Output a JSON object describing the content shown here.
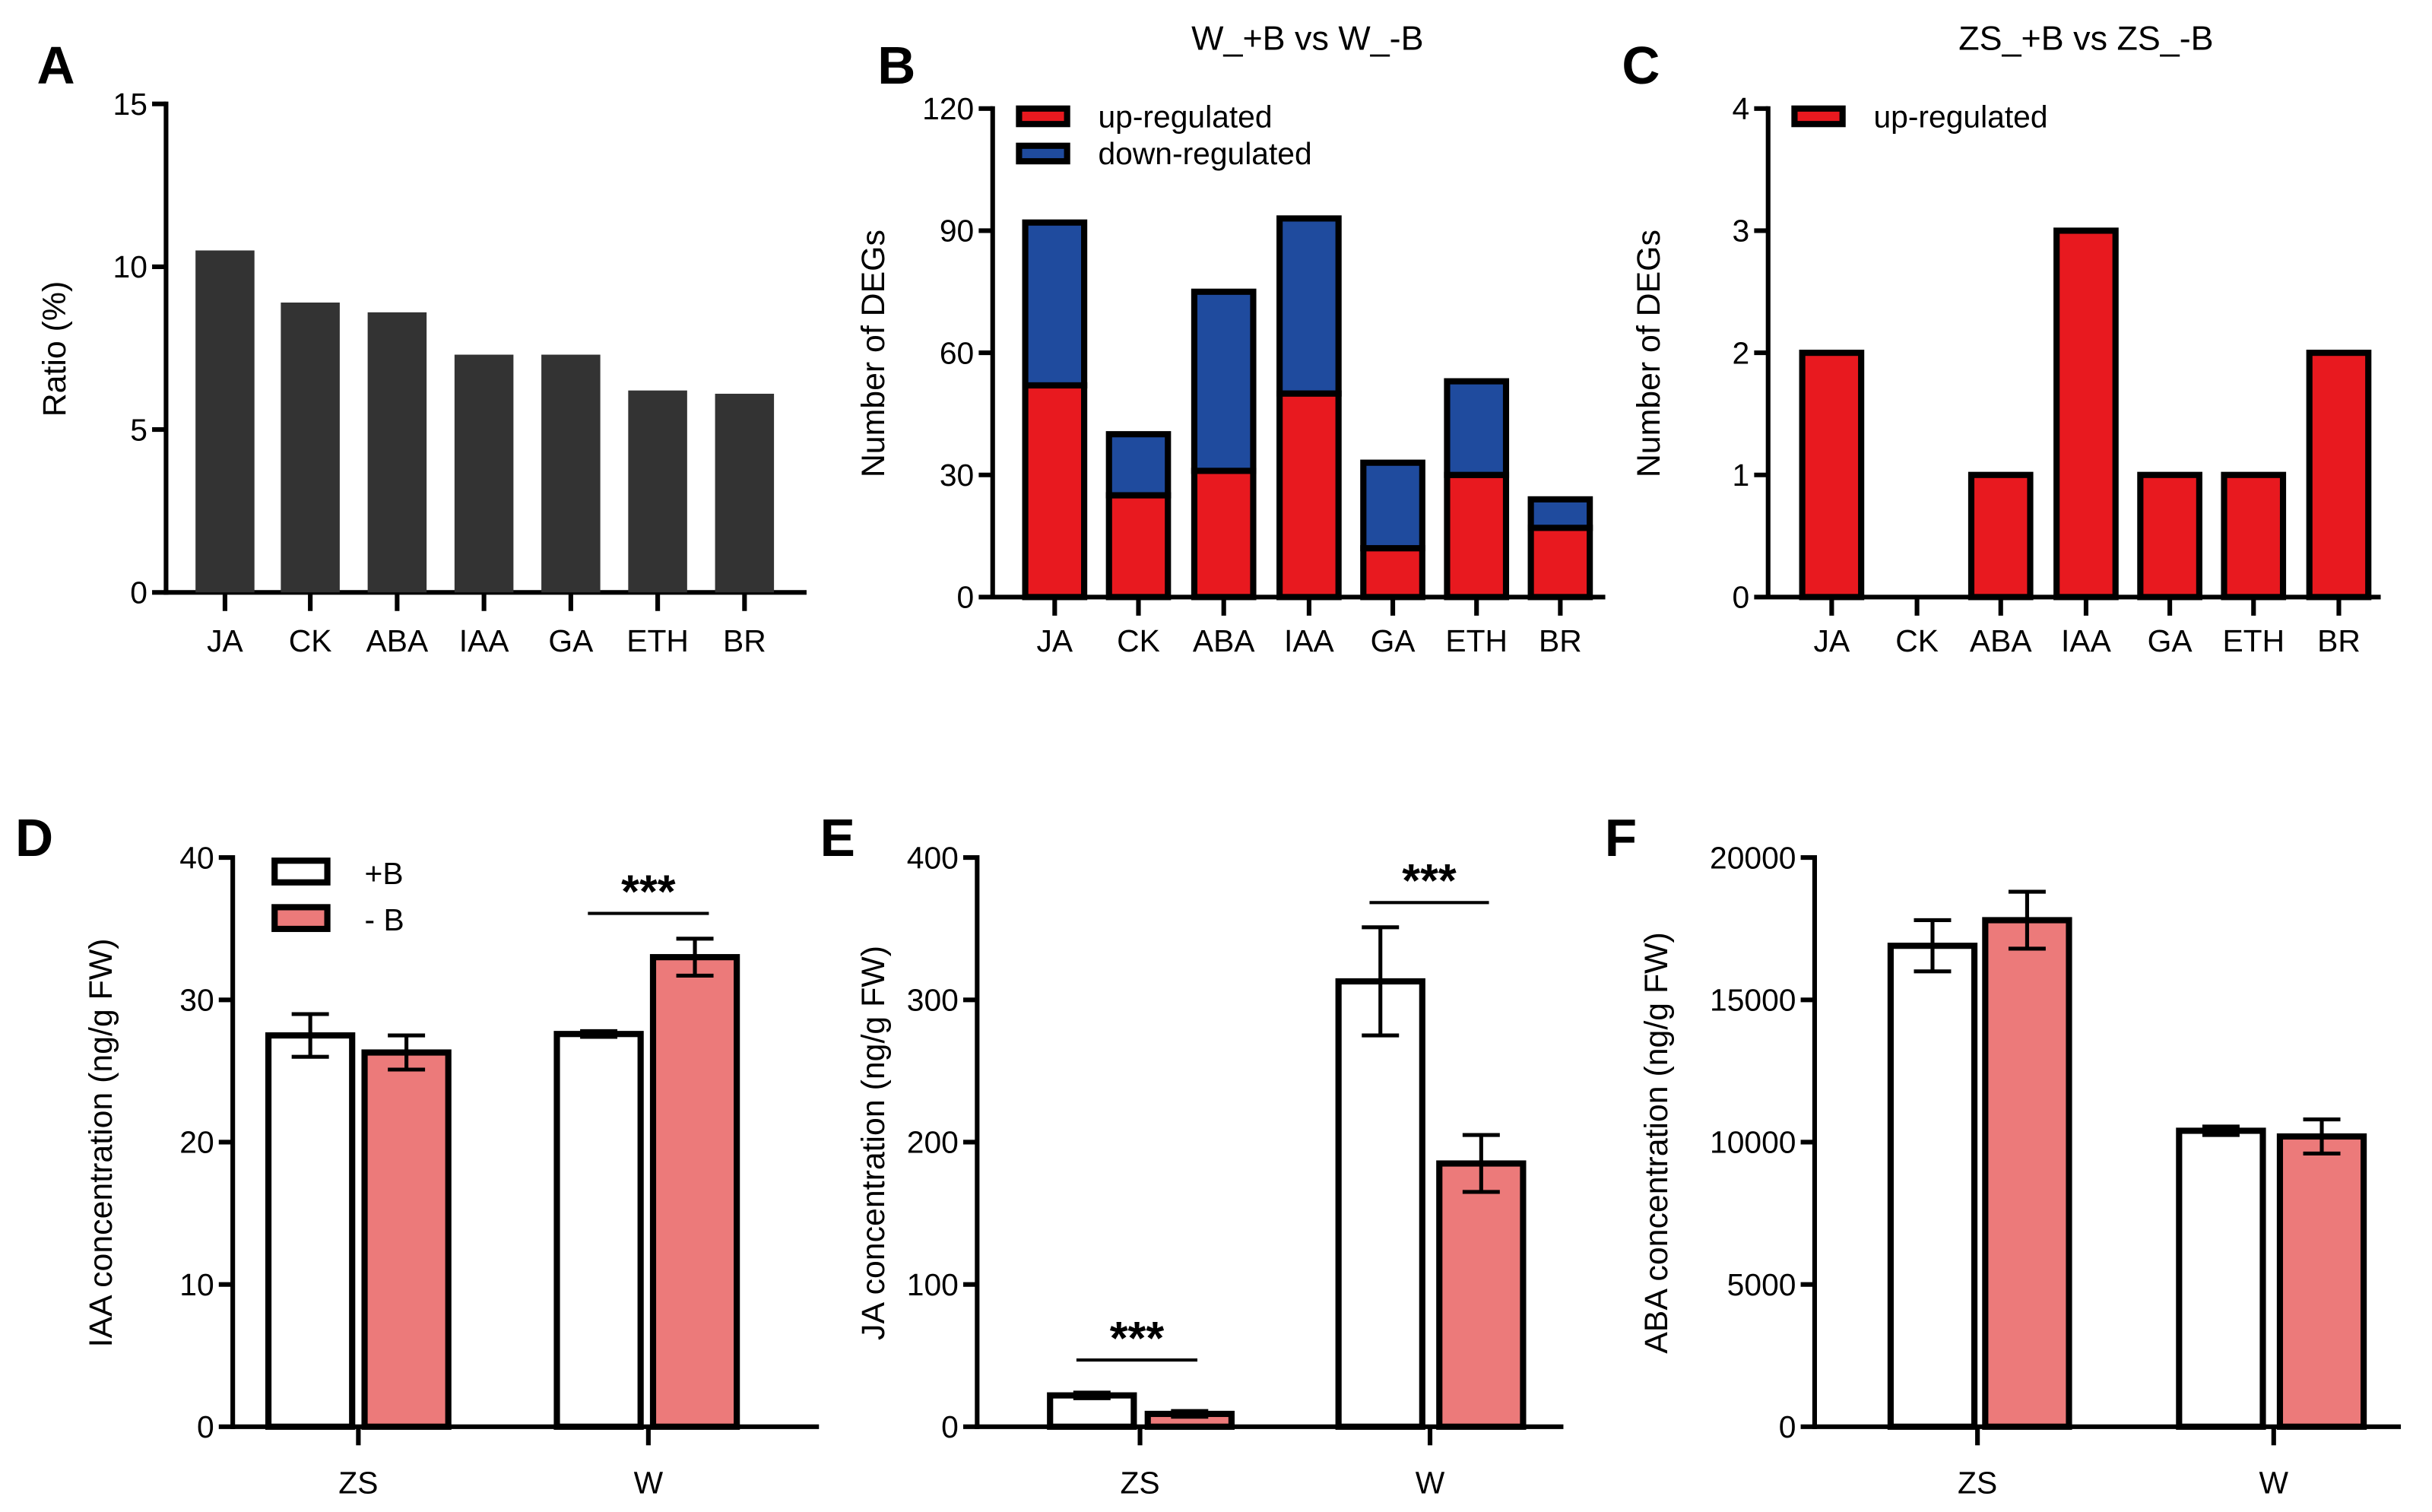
{
  "colors": {
    "dark": "#333333",
    "up": "#e8191f",
    "down": "#1f4b9e",
    "plus_b": "#ffffff",
    "minus_b": "#ec7a7a"
  },
  "chart_data": [
    {
      "panel": "A",
      "type": "bar",
      "title": "",
      "ylabel": "Ratio (%)",
      "xlabel": "",
      "categories": [
        "JA",
        "CK",
        "ABA",
        "IAA",
        "GA",
        "ETH",
        "BR"
      ],
      "values": [
        10.5,
        8.9,
        8.6,
        7.3,
        7.3,
        6.2,
        6.1
      ],
      "ylim": [
        0,
        15
      ],
      "yticks": [
        "0",
        "5",
        "10",
        "15"
      ]
    },
    {
      "panel": "B",
      "type": "bar",
      "stacked": true,
      "title": "W_+B vs W_-B",
      "ylabel": "Number of DEGs",
      "categories": [
        "JA",
        "CK",
        "ABA",
        "IAA",
        "GA",
        "ETH",
        "BR"
      ],
      "series": [
        {
          "name": "up-regulated",
          "values": [
            52,
            25,
            31,
            50,
            12,
            30,
            17
          ]
        },
        {
          "name": "down-regulated",
          "values": [
            40,
            15,
            44,
            43,
            21,
            23,
            7
          ]
        }
      ],
      "ylim": [
        0,
        120
      ],
      "yticks": [
        "0",
        "30",
        "60",
        "90",
        "120"
      ],
      "legend": "top-left"
    },
    {
      "panel": "C",
      "type": "bar",
      "title": "ZS_+B vs ZS_-B",
      "ylabel": "Number of DEGs",
      "categories": [
        "JA",
        "CK",
        "ABA",
        "IAA",
        "GA",
        "ETH",
        "BR"
      ],
      "series": [
        {
          "name": "up-regulated",
          "values": [
            2,
            0,
            1,
            3,
            1,
            1,
            2
          ]
        }
      ],
      "ylim": [
        0,
        4
      ],
      "yticks": [
        "0",
        "1",
        "2",
        "3",
        "4"
      ],
      "legend": "top-left"
    },
    {
      "panel": "D",
      "type": "bar",
      "ylabel": "IAA concentration (ng/g FW)",
      "categories": [
        "ZS",
        "W"
      ],
      "series": [
        {
          "name": "+B",
          "values": [
            27.5,
            27.6
          ],
          "errors": [
            1.5,
            0.2
          ]
        },
        {
          "name": "- B",
          "values": [
            26.3,
            33.0
          ],
          "errors": [
            1.2,
            1.3
          ]
        }
      ],
      "ylim": [
        0,
        40
      ],
      "yticks": [
        "0",
        "10",
        "20",
        "30",
        "40"
      ],
      "legend": "top-left",
      "annotations": [
        {
          "category": "W",
          "text": "***"
        }
      ]
    },
    {
      "panel": "E",
      "type": "bar",
      "ylabel": "JA concentration (ng/g FW)",
      "categories": [
        "ZS",
        "W"
      ],
      "series": [
        {
          "name": "+B",
          "values": [
            22,
            313
          ],
          "errors": [
            2,
            38
          ]
        },
        {
          "name": "- B",
          "values": [
            9,
            185
          ],
          "errors": [
            2,
            20
          ]
        }
      ],
      "ylim": [
        0,
        400
      ],
      "yticks": [
        "0",
        "100",
        "200",
        "300",
        "400"
      ],
      "annotations": [
        {
          "category": "ZS",
          "text": "***"
        },
        {
          "category": "W",
          "text": "***"
        }
      ]
    },
    {
      "panel": "F",
      "type": "bar",
      "ylabel": "ABA concentration (ng/g FW)",
      "categories": [
        "ZS",
        "W"
      ],
      "series": [
        {
          "name": "+B",
          "values": [
            16900,
            10400
          ],
          "errors": [
            900,
            150
          ]
        },
        {
          "name": "- B",
          "values": [
            17800,
            10200
          ],
          "errors": [
            1000,
            600
          ]
        }
      ],
      "ylim": [
        0,
        20000
      ],
      "yticks": [
        "0",
        "5000",
        "10000",
        "15000",
        "20000"
      ],
      "annotations": []
    }
  ]
}
